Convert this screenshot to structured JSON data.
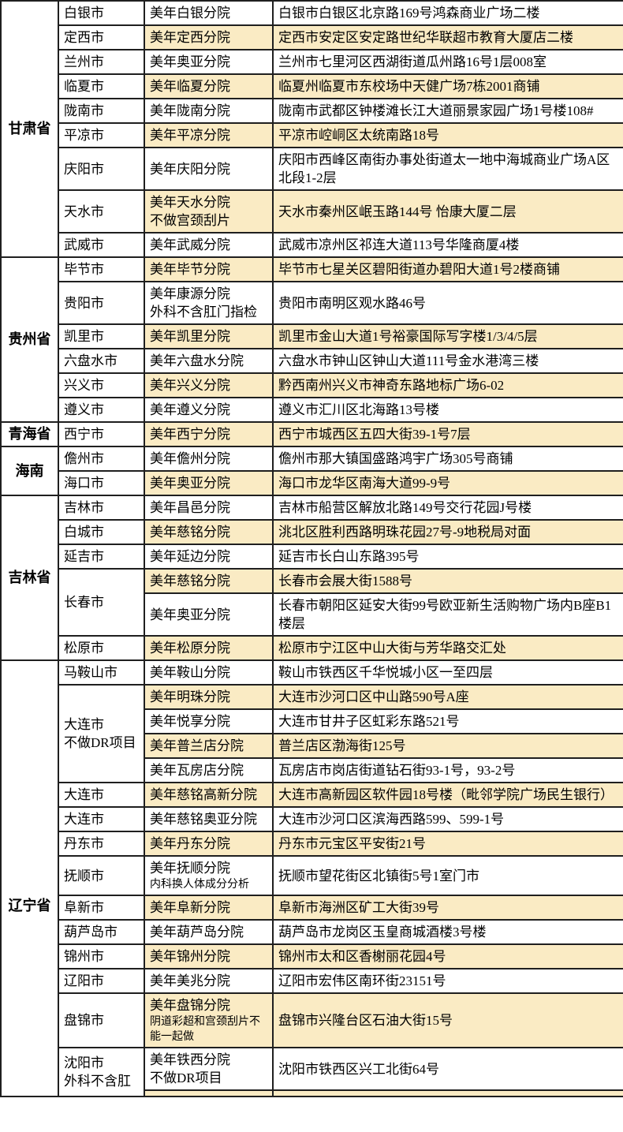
{
  "table": {
    "description_labels": {
      "province_column": "province",
      "city_column": "city",
      "branch_column": "branch",
      "address_column": "address"
    },
    "colors": {
      "row_shade": "#FAEBC4",
      "border": "#1F1F1F",
      "background": "#FFFFFF",
      "text": "#000000"
    },
    "provinces": [
      {
        "name": "甘肃省",
        "rows": [
          {
            "city": "白银市",
            "branch": "美年白银分院",
            "address": "白银市白银区北京路169号鸿森商业广场二楼",
            "shaded": false
          },
          {
            "city": "定西市",
            "branch": "美年定西分院",
            "address": "定西市安定区安定路世纪华联超市教育大厦店二楼",
            "shaded": true
          },
          {
            "city": "兰州市",
            "branch": "美年奥亚分院",
            "address": "兰州市七里河区西湖街道瓜州路16号1层008室",
            "shaded": false
          },
          {
            "city": "临夏市",
            "branch": "美年临夏分院",
            "address": "临夏州临夏市东校场中天健广场7栋2001商铺",
            "shaded": true
          },
          {
            "city": "陇南市",
            "branch": "美年陇南分院",
            "address": "陇南市武都区钟楼滩长江大道丽景家园广场1号楼108#",
            "shaded": false
          },
          {
            "city": "平凉市",
            "branch": "美年平凉分院",
            "address": "平凉市崆峒区太统南路18号",
            "shaded": true
          },
          {
            "city": "庆阳市",
            "branch": "美年庆阳分院",
            "address": "庆阳市西峰区南街办事处街道太一地中海城商业广场A区北段1-2层",
            "shaded": false
          },
          {
            "city": "天水市",
            "branch": "美年天水分院",
            "branch_note": "不做宫颈刮片",
            "note_small": false,
            "address": "天水市秦州区岷玉路144号  怡康大厦二层",
            "shaded": true
          },
          {
            "city": "武威市",
            "branch": "美年武威分院",
            "address": "武威市凉州区祁连大道113号华隆商厦4楼",
            "shaded": false
          }
        ]
      },
      {
        "name": "贵州省",
        "rows": [
          {
            "city": "毕节市",
            "branch": "美年毕节分院",
            "address": "毕节市七星关区碧阳街道办碧阳大道1号2楼商铺",
            "shaded": true
          },
          {
            "city": "贵阳市",
            "branch": "美年康源分院",
            "branch_note": "外科不含肛门指检",
            "note_small": false,
            "address": "贵阳市南明区观水路46号",
            "shaded": false
          },
          {
            "city": "凯里市",
            "branch": "美年凯里分院",
            "address": "凯里市金山大道1号裕豪国际写字楼1/3/4/5层",
            "shaded": true
          },
          {
            "city": "六盘水市",
            "branch": "美年六盘水分院",
            "address": "六盘水市钟山区钟山大道111号金水港湾三楼",
            "shaded": false
          },
          {
            "city": "兴义市",
            "branch": "美年兴义分院",
            "address": "黔西南州兴义市神奇东路地标广场6-02",
            "shaded": true
          },
          {
            "city": "遵义市",
            "branch": "美年遵义分院",
            "address": "遵义市汇川区北海路13号楼",
            "shaded": false
          }
        ]
      },
      {
        "name": "青海省",
        "rows": [
          {
            "city": "西宁市",
            "branch": "美年西宁分院",
            "address": "西宁市城西区五四大街39-1号7层",
            "shaded": true
          }
        ]
      },
      {
        "name": "海南",
        "rows": [
          {
            "city": "儋州市",
            "branch": "美年儋州分院",
            "address": "儋州市那大镇国盛路鸿宇广场305号商铺",
            "shaded": false
          },
          {
            "city": "海口市",
            "branch": "美年奥亚分院",
            "address": "海口市龙华区南海大道99-9号",
            "shaded": true
          }
        ]
      },
      {
        "name": "吉林省",
        "rows": [
          {
            "city": "吉林市",
            "branch": "美年昌邑分院",
            "address": "吉林市船营区解放北路149号交行花园J号楼",
            "shaded": false
          },
          {
            "city": "白城市",
            "branch": "美年慈铭分院",
            "address": "洮北区胜利西路明珠花园27号-9地税局对面",
            "shaded": true
          },
          {
            "city": "延吉市",
            "branch": "美年延边分院",
            "address": "延吉市长白山东路395号",
            "shaded": false
          },
          {
            "city": "长春市",
            "city_span": 2,
            "branch": "美年慈铭分院",
            "address": "长春市会展大街1588号",
            "shaded": true
          },
          {
            "city": null,
            "branch": "美年奥亚分院",
            "address": "长春市朝阳区延安大街99号欧亚新生活购物广场内B座B1楼层",
            "shaded": false
          },
          {
            "city": "松原市",
            "branch": "美年松原分院",
            "address": "松原市宁江区中山大街与芳华路交汇处",
            "shaded": true
          }
        ]
      },
      {
        "name": "辽宁省",
        "rows": [
          {
            "city": "马鞍山市",
            "branch": "美年鞍山分院",
            "address": "鞍山市铁西区千华悦城小区一至四层",
            "shaded": false
          },
          {
            "city": "大连市",
            "city_note": "不做DR项目",
            "city_note_small": false,
            "city_span": 4,
            "branch": "美年明珠分院",
            "address": "大连市沙河口区中山路590号A座",
            "shaded": true
          },
          {
            "city": null,
            "branch": "美年悦享分院",
            "address": "大连市甘井子区虹彩东路521号",
            "shaded": false
          },
          {
            "city": null,
            "branch": "美年普兰店分院",
            "address": "普兰店区渤海街125号",
            "shaded": true
          },
          {
            "city": null,
            "branch": "美年瓦房店分院",
            "address": "瓦房店市岗店街道钻石街93-1号，93-2号",
            "shaded": false
          },
          {
            "city": "大连市",
            "branch": "美年慈铭高新分院",
            "address": "大连市高新园区软件园18号楼（毗邻学院广场民生银行）",
            "shaded": true
          },
          {
            "city": "大连市",
            "branch": "美年慈铭奥亚分院",
            "address": "大连市沙河口区滨海西路599、599-1号",
            "shaded": false
          },
          {
            "city": "丹东市",
            "branch": "美年丹东分院",
            "address": "丹东市元宝区平安街21号",
            "shaded": true
          },
          {
            "city": "抚顺市",
            "branch": "美年抚顺分院",
            "branch_note": "内科换人体成分分析",
            "note_small": true,
            "address": "抚顺市望花街区北镇街5号1室门市",
            "shaded": false
          },
          {
            "city": "阜新市",
            "branch": "美年阜新分院",
            "address": "阜新市海洲区矿工大街39号",
            "shaded": true
          },
          {
            "city": "葫芦岛市",
            "branch": "美年葫芦岛分院",
            "address": "葫芦岛市龙岗区玉皇商城酒楼3号楼",
            "shaded": false
          },
          {
            "city": "锦州市",
            "branch": "美年锦州分院",
            "address": "锦州市太和区香榭丽花园4号",
            "shaded": true
          },
          {
            "city": "辽阳市",
            "branch": "美年美兆分院",
            "address": "辽阳市宏伟区南环街23151号",
            "shaded": false
          },
          {
            "city": "盘锦市",
            "branch": "美年盘锦分院",
            "branch_note": "阴道彩超和宫颈刮片不能一起做",
            "note_small": true,
            "address": "盘锦市兴隆台区石油大街15号",
            "shaded": true
          },
          {
            "city": "沈阳市",
            "city_note": "外科不含肛",
            "city_note_small": false,
            "city_span": 2,
            "branch": "美年铁西分院",
            "branch_note": "不做DR项目",
            "note_small": false,
            "address": "沈阳市铁西区兴工北街64号",
            "shaded": false
          },
          {
            "city": null,
            "branch": "",
            "address": "",
            "shaded": true
          }
        ]
      }
    ]
  }
}
